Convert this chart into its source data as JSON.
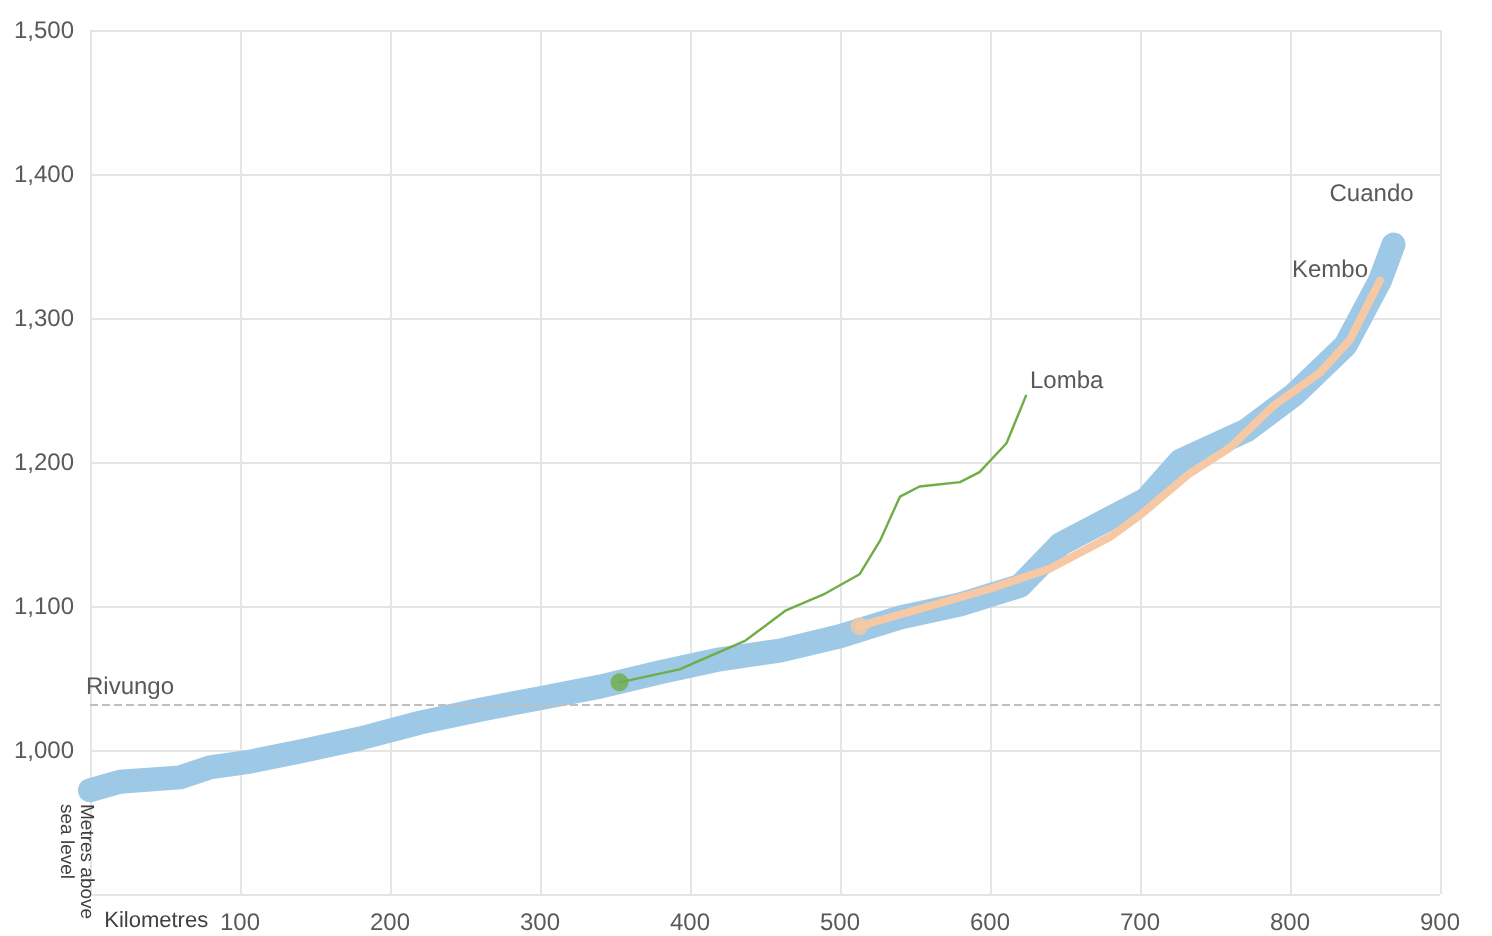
{
  "chart_data": {
    "type": "line",
    "xlabel": "Kilometres",
    "ylabel": "Metres above sea level",
    "xlim": [
      0,
      900
    ],
    "xticks": [
      {
        "value": 0,
        "label": null
      },
      100,
      200,
      300,
      400,
      500,
      600,
      700,
      800,
      900
    ],
    "ylim": [
      900,
      1500
    ],
    "yticks": [
      {
        "value": 900,
        "label": null
      },
      {
        "value": 1000,
        "label": "1,000"
      },
      {
        "value": 1100,
        "label": "1,100"
      },
      {
        "value": 1200,
        "label": "1,200"
      },
      {
        "value": 1300,
        "label": "1,300"
      },
      {
        "value": 1400,
        "label": "1,400"
      },
      {
        "value": 1500,
        "label": "1,500"
      }
    ],
    "grid": true,
    "legend": false,
    "line_style": "solid",
    "series": [
      {
        "name": "Cuando",
        "color": "#9dc8e6",
        "x": [
          0,
          20,
          60,
          80,
          107,
          140,
          180,
          220,
          260,
          300,
          340,
          380,
          420,
          460,
          500,
          540,
          580,
          620,
          647,
          704,
          727,
          771,
          803,
          837,
          860,
          869
        ],
        "values": [
          972,
          978,
          981,
          988,
          992,
          999,
          1008,
          1019,
          1028,
          1036,
          1044,
          1054,
          1063,
          1069,
          1079,
          1092,
          1101,
          1114,
          1143,
          1174,
          1201,
          1222,
          1247,
          1281,
          1326,
          1351
        ]
      },
      {
        "name": "Kembo",
        "color": "#f6c9a4",
        "x": [
          513,
          560,
          600,
          640,
          680,
          700,
          733,
          760,
          790,
          820,
          840,
          860
        ],
        "values": [
          1086,
          1100,
          1112,
          1126,
          1148,
          1163,
          1192,
          1210,
          1240,
          1262,
          1285,
          1326
        ]
      },
      {
        "name": "Lomba",
        "color": "#70ad47",
        "x": [
          353,
          393,
          437,
          464,
          489,
          513,
          527,
          540,
          553,
          580,
          593,
          611,
          624
        ],
        "values": [
          1047,
          1056,
          1076,
          1097,
          1108,
          1122,
          1146,
          1176,
          1183,
          1186,
          1193,
          1213,
          1246
        ]
      },
      {
        "type": "scatter",
        "marker": "circle",
        "x": [
          353,
          513
        ],
        "values": [
          1047,
          1086
        ],
        "colors": [
          "#70ad47",
          "#f6c9a4"
        ]
      }
    ],
    "ref_lines": [
      {
        "axis": "y",
        "value": 1032,
        "label": "Rivungo",
        "color": "#bfbfbf",
        "line_style": "dashed"
      }
    ]
  }
}
